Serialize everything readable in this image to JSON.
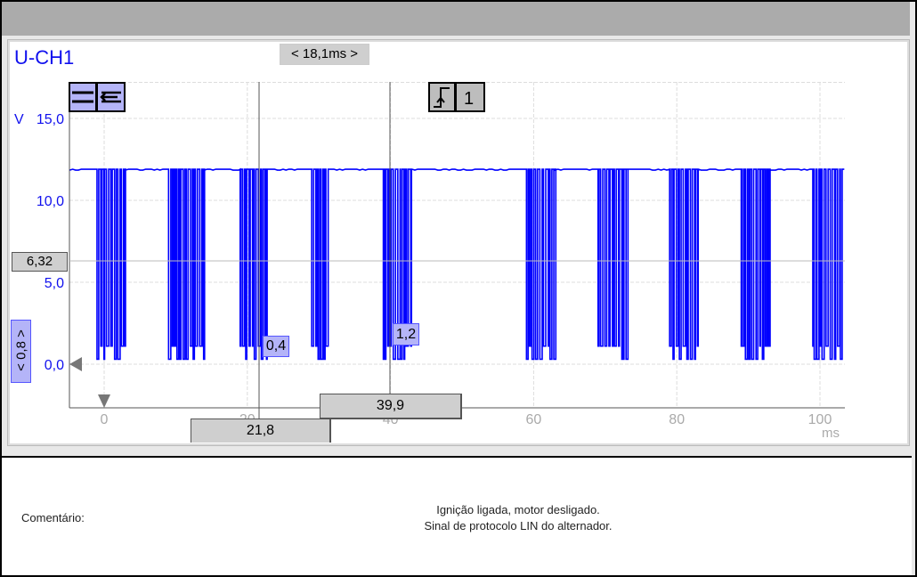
{
  "channel": "U-CH1",
  "delta_time": "< 18,1ms >",
  "y_cursor_value": "6,32",
  "y_zoom_label": "< 0,8 >",
  "trigger_channel": "1",
  "cursor_a": {
    "time": "21,8",
    "value": "0,4"
  },
  "cursor_b": {
    "time": "39,9",
    "value": "1,2"
  },
  "comment": {
    "label": "Comentário:",
    "line1": "Ignição ligada, motor desligado.",
    "line2": "Sinal de protocolo LIN do alternador."
  },
  "icons": [
    "menu-lines-icon",
    "arrow-left-icon",
    "trigger-rising-edge-icon",
    "zero-marker-icon",
    "trigger-marker-icon"
  ],
  "colors": {
    "signal": "#0000ff",
    "axis_label": "#1010ee",
    "cursor_box": "#b4b4f8"
  },
  "chart_data": {
    "type": "line",
    "ylabel": "V",
    "xunit": "ms",
    "ylim": [
      -2.6,
      17.2
    ],
    "xlim": [
      -4.8,
      103.5
    ],
    "yticks": [
      "15,0",
      "10,0",
      "5,0",
      "0,0"
    ],
    "xticks": [
      "0",
      "20",
      "40",
      "60",
      "80",
      "100"
    ],
    "grid": true,
    "high_level": 11.9,
    "low_levels": [
      1.1,
      0.3
    ],
    "bursts_ms": [
      [
        -1,
        3
      ],
      [
        9,
        14
      ],
      [
        19,
        23
      ],
      [
        29,
        31.3
      ],
      [
        39,
        43
      ],
      [
        59,
        63
      ],
      [
        69,
        73
      ],
      [
        79,
        83
      ],
      [
        89,
        93
      ],
      [
        99,
        103
      ]
    ],
    "cursors_ms": [
      21.8,
      39.9
    ],
    "y_cursor": 6.32
  }
}
